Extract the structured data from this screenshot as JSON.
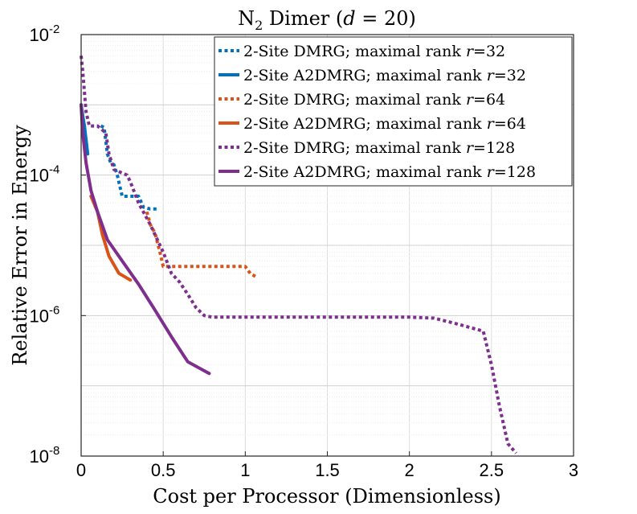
{
  "chart_data": {
    "type": "line",
    "title": {
      "prefix": "N",
      "sub": "2",
      "rest": " Dimer (",
      "var": "d",
      "eq": " = 20)"
    },
    "xlabel": "Cost per Processor (Dimensionless)",
    "ylabel": "Relative Error in Energy",
    "xlim": [
      0,
      3
    ],
    "ylim": [
      1e-08,
      0.01
    ],
    "yscale": "log",
    "xticks": [
      {
        "value": 0,
        "label": "0"
      },
      {
        "value": 0.5,
        "label": "0.5"
      },
      {
        "value": 1,
        "label": "1"
      },
      {
        "value": 1.5,
        "label": "1.5"
      },
      {
        "value": 2,
        "label": "2"
      },
      {
        "value": 2.5,
        "label": "2.5"
      },
      {
        "value": 3,
        "label": "3"
      }
    ],
    "yticks": [
      {
        "value": 0.01,
        "base": "10",
        "exp": "-2"
      },
      {
        "value": 0.0001,
        "base": "10",
        "exp": "-4"
      },
      {
        "value": 1e-06,
        "base": "10",
        "exp": "-6"
      },
      {
        "value": 1e-08,
        "base": "10",
        "exp": "-8"
      }
    ],
    "legend_position": "top-right",
    "series": [
      {
        "name": "2-Site DMRG; maximal rank r=32",
        "label_prefix": "2-Site DMRG; maximal rank ",
        "label_var": "r",
        "label_suffix": "=32",
        "color": "#0072bd",
        "dash": "dotted",
        "x": [
          0.12,
          0.14,
          0.16,
          0.18,
          0.2,
          0.22,
          0.25,
          0.3,
          0.35,
          0.38,
          0.42,
          0.46
        ],
        "y": [
          0.0005,
          0.00048,
          0.0002,
          0.00015,
          0.00014,
          0.0001,
          5e-05,
          5e-05,
          5e-05,
          3.5e-05,
          3.3e-05,
          3.3e-05
        ]
      },
      {
        "name": "2-Site A2DMRG; maximal rank r=32",
        "label_prefix": "2-Site A2DMRG; maximal rank ",
        "label_var": "r",
        "label_suffix": "=32",
        "color": "#0072bd",
        "dash": "solid",
        "x": [
          0.0,
          0.01,
          0.02,
          0.04
        ],
        "y": [
          0.001,
          0.0007,
          0.0005,
          0.0002
        ]
      },
      {
        "name": "2-Site DMRG; maximal rank r=64",
        "label_prefix": "2-Site DMRG; maximal rank ",
        "label_var": "r",
        "label_suffix": "=64",
        "color": "#d95319",
        "dash": "dotted",
        "x": [
          0.4,
          0.41,
          0.42,
          0.45,
          0.48,
          0.5,
          0.55,
          0.7,
          0.85,
          1.0,
          1.03,
          1.07
        ],
        "y": [
          3e-05,
          2.5e-05,
          2e-05,
          1.5e-05,
          8e-06,
          5e-06,
          5e-06,
          5e-06,
          5e-06,
          5e-06,
          4e-06,
          3.5e-06
        ]
      },
      {
        "name": "2-Site A2DMRG; maximal rank r=64",
        "label_prefix": "2-Site A2DMRG; maximal rank ",
        "label_var": "r",
        "label_suffix": "=64",
        "color": "#d95319",
        "dash": "solid",
        "x": [
          0.06,
          0.1,
          0.13,
          0.17,
          0.23,
          0.3
        ],
        "y": [
          5e-05,
          3e-05,
          1.4e-05,
          7e-06,
          4e-06,
          3.2e-06
        ]
      },
      {
        "name": "2-Site DMRG; maximal rank r=128",
        "label_prefix": "2-Site DMRG; maximal rank ",
        "label_var": "r",
        "label_suffix": "=128",
        "color": "#7e2f8e",
        "dash": "dotted",
        "x": [
          0.0,
          0.01,
          0.03,
          0.05,
          0.1,
          0.15,
          0.17,
          0.2,
          0.28,
          0.3,
          0.35,
          0.42,
          0.5,
          0.55,
          0.6,
          0.65,
          0.7,
          0.75,
          0.8,
          1.0,
          1.5,
          2.0,
          2.15,
          2.3,
          2.45,
          2.5,
          2.55,
          2.6,
          2.65
        ],
        "y": [
          0.005,
          0.003,
          0.0008,
          0.0005,
          0.0005,
          0.0004,
          0.0002,
          0.00012,
          0.0001,
          8e-05,
          4e-05,
          2e-05,
          8e-06,
          4e-06,
          3e-06,
          2e-06,
          1.3e-06,
          1e-06,
          9.5e-07,
          9.5e-07,
          9.5e-07,
          9.5e-07,
          9.2e-07,
          7.5e-07,
          6e-07,
          2e-07,
          5e-08,
          1.5e-08,
          1.1e-08
        ]
      },
      {
        "name": "2-Site A2DMRG; maximal rank r=128",
        "label_prefix": "2-Site A2DMRG; maximal rank ",
        "label_var": "r",
        "label_suffix": "=128",
        "color": "#7e2f8e",
        "dash": "solid",
        "x": [
          0.0,
          0.01,
          0.03,
          0.06,
          0.1,
          0.16,
          0.25,
          0.35,
          0.45,
          0.55,
          0.65,
          0.78
        ],
        "y": [
          0.001,
          0.0004,
          0.00015,
          6e-05,
          3e-05,
          1.2e-05,
          6e-06,
          2.8e-06,
          1.2e-06,
          5e-07,
          2.2e-07,
          1.5e-07
        ]
      }
    ]
  }
}
